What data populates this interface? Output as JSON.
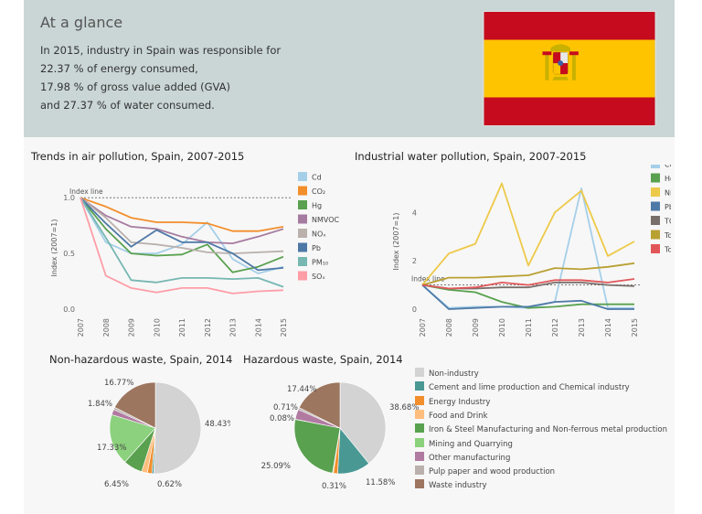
{
  "header": {
    "title": "At a glance",
    "summary": {
      "line1": "In 2015, industry in Spain was responsible for",
      "line2_value": "22.37 %",
      "line2_rest": " of energy consumed,",
      "line3_value": "17.98 %",
      "line3_rest": " of gross value added (GVA)",
      "line4_pre": "and ",
      "line4_value": "27.37 %",
      "line4_rest": " of water consumed."
    },
    "flag": {
      "colors": {
        "red": "#c60b1e",
        "yellow": "#ffc400"
      },
      "icon": "spain-flag-icon"
    }
  },
  "chart_data": [
    {
      "id": "air",
      "type": "line",
      "title": "Trends in air pollution, Spain, 2007-2015",
      "ylabel": "Index (2007=1)",
      "ylim": [
        0,
        1.1
      ],
      "yticks": [
        "0.0",
        "0.5",
        "1.0"
      ],
      "index_line_label": "Index line",
      "x": [
        "2007",
        "2008",
        "2009",
        "2010",
        "2011",
        "2012",
        "2013",
        "2014",
        "2015"
      ],
      "series": [
        {
          "name": "Cd",
          "color": "#a5cfe8",
          "values": [
            1.0,
            0.6,
            0.5,
            0.5,
            0.58,
            0.78,
            0.45,
            0.32,
            0.38
          ]
        },
        {
          "name": "CO₂",
          "color": "#f28e2b",
          "values": [
            1.0,
            0.92,
            0.82,
            0.78,
            0.78,
            0.77,
            0.7,
            0.7,
            0.74
          ]
        },
        {
          "name": "Hg",
          "color": "#59a14f",
          "values": [
            1.0,
            0.72,
            0.5,
            0.48,
            0.49,
            0.58,
            0.33,
            0.38,
            0.47
          ]
        },
        {
          "name": "NMVOC",
          "color": "#a67ba0",
          "values": [
            1.0,
            0.84,
            0.74,
            0.72,
            0.65,
            0.6,
            0.59,
            0.65,
            0.72
          ]
        },
        {
          "name": "NOₓ",
          "color": "#bab0ac",
          "values": [
            1.0,
            0.82,
            0.6,
            0.58,
            0.55,
            0.51,
            0.5,
            0.51,
            0.52
          ]
        },
        {
          "name": "Pb",
          "color": "#4e79a7",
          "values": [
            1.0,
            0.77,
            0.56,
            0.71,
            0.6,
            0.6,
            0.5,
            0.35,
            0.37
          ]
        },
        {
          "name": "PM₁₀",
          "color": "#76b7b2",
          "values": [
            1.0,
            0.64,
            0.26,
            0.24,
            0.28,
            0.28,
            0.27,
            0.28,
            0.2
          ]
        },
        {
          "name": "SOₓ",
          "color": "#ff9da7",
          "values": [
            1.0,
            0.3,
            0.19,
            0.15,
            0.19,
            0.19,
            0.14,
            0.16,
            0.17
          ]
        }
      ]
    },
    {
      "id": "water",
      "type": "line",
      "title": "Industrial water pollution, Spain, 2007-2015",
      "ylabel": "Index (2007=1)",
      "ylim": [
        0,
        5.6
      ],
      "yticks": [
        "0",
        "2",
        "4"
      ],
      "index_line_label": "Index line",
      "x": [
        "2007",
        "2008",
        "2009",
        "2010",
        "2011",
        "2012",
        "2013",
        "2014",
        "2015"
      ],
      "series": [
        {
          "name": "Cd",
          "color": "#a5cfe8",
          "values": [
            1.0,
            0.05,
            0.1,
            0.1,
            0.05,
            0.3,
            5.0,
            0.05,
            0.05
          ]
        },
        {
          "name": "Hg",
          "color": "#59a14f",
          "values": [
            1.0,
            0.8,
            0.7,
            0.3,
            0.05,
            0.1,
            0.2,
            0.2,
            0.2
          ]
        },
        {
          "name": "Ni",
          "color": "#edc948",
          "values": [
            1.0,
            2.3,
            2.7,
            5.2,
            1.8,
            4.0,
            4.9,
            2.2,
            2.8
          ]
        },
        {
          "name": "Pb",
          "color": "#4e79a7",
          "values": [
            1.0,
            0.0,
            0.05,
            0.1,
            0.1,
            0.3,
            0.35,
            0.0,
            0.0
          ]
        },
        {
          "name": "TOC",
          "color": "#796f6a",
          "values": [
            1.0,
            0.85,
            0.85,
            0.9,
            0.9,
            1.1,
            1.1,
            1.0,
            0.95
          ]
        },
        {
          "name": "Tot-N",
          "color": "#b9a033",
          "values": [
            1.0,
            1.3,
            1.3,
            1.35,
            1.4,
            1.7,
            1.65,
            1.75,
            1.9
          ]
        },
        {
          "name": "Tot-P",
          "color": "#e15759",
          "values": [
            1.0,
            0.85,
            0.9,
            1.1,
            1.0,
            1.2,
            1.2,
            1.1,
            1.25
          ]
        }
      ]
    },
    {
      "id": "nonhaz",
      "type": "pie",
      "title": "Non-hazardous waste, Spain, 2014",
      "slices": [
        {
          "name": "Non-industry",
          "value": 48.43,
          "label": "48.43%"
        },
        {
          "name": "Cement and lime production and Chemical industry",
          "value": 0.62,
          "label": "0.62%"
        },
        {
          "name": "Energy Industry",
          "value": 1.5,
          "label": ""
        },
        {
          "name": "Food and Drink",
          "value": 2.0,
          "label": ""
        },
        {
          "name": "Iron & Steel Manufacturing and Non-ferrous metal production",
          "value": 6.45,
          "label": "6.45%"
        },
        {
          "name": "Mining and Quarrying",
          "value": 17.33,
          "label": "17.33%"
        },
        {
          "name": "Other manufacturing",
          "value": 1.84,
          "label": "1.84%"
        },
        {
          "name": "Pulp paper and wood production",
          "value": 0.8,
          "label": ""
        },
        {
          "name": "Waste industry",
          "value": 16.77,
          "label": "16.77%"
        }
      ]
    },
    {
      "id": "haz",
      "type": "pie",
      "title": "Hazardous waste, Spain, 2014",
      "slices": [
        {
          "name": "Non-industry",
          "value": 38.68,
          "label": "38.68%"
        },
        {
          "name": "Cement and lime production and Chemical industry",
          "value": 11.58,
          "label": "11.58%"
        },
        {
          "name": "Energy Industry",
          "value": 1.5,
          "label": ""
        },
        {
          "name": "Food and Drink",
          "value": 0.31,
          "label": "0.31%"
        },
        {
          "name": "Iron & Steel Manufacturing and Non-ferrous metal production",
          "value": 25.09,
          "label": "25.09%"
        },
        {
          "name": "Mining and Quarrying",
          "value": 0.08,
          "label": "0.08%"
        },
        {
          "name": "Other manufacturing",
          "value": 3.5,
          "label": ""
        },
        {
          "name": "Pulp paper and wood production",
          "value": 0.71,
          "label": "0.71%"
        },
        {
          "name": "Waste industry",
          "value": 17.44,
          "label": "17.44%"
        }
      ]
    }
  ],
  "waste_legend": [
    {
      "name": "Non-industry",
      "color": "#d3d3d3"
    },
    {
      "name": "Cement and lime production and Chemical industry",
      "color": "#499894"
    },
    {
      "name": "Energy Industry",
      "color": "#f28e2b"
    },
    {
      "name": "Food and Drink",
      "color": "#ffbe7d"
    },
    {
      "name": "Iron & Steel Manufacturing and Non-ferrous metal production",
      "color": "#59a14f"
    },
    {
      "name": "Mining and Quarrying",
      "color": "#8cd17d"
    },
    {
      "name": "Other manufacturing",
      "color": "#b07aa1"
    },
    {
      "name": "Pulp paper and wood production",
      "color": "#bab0ac"
    },
    {
      "name": "Waste industry",
      "color": "#9d7660"
    }
  ]
}
